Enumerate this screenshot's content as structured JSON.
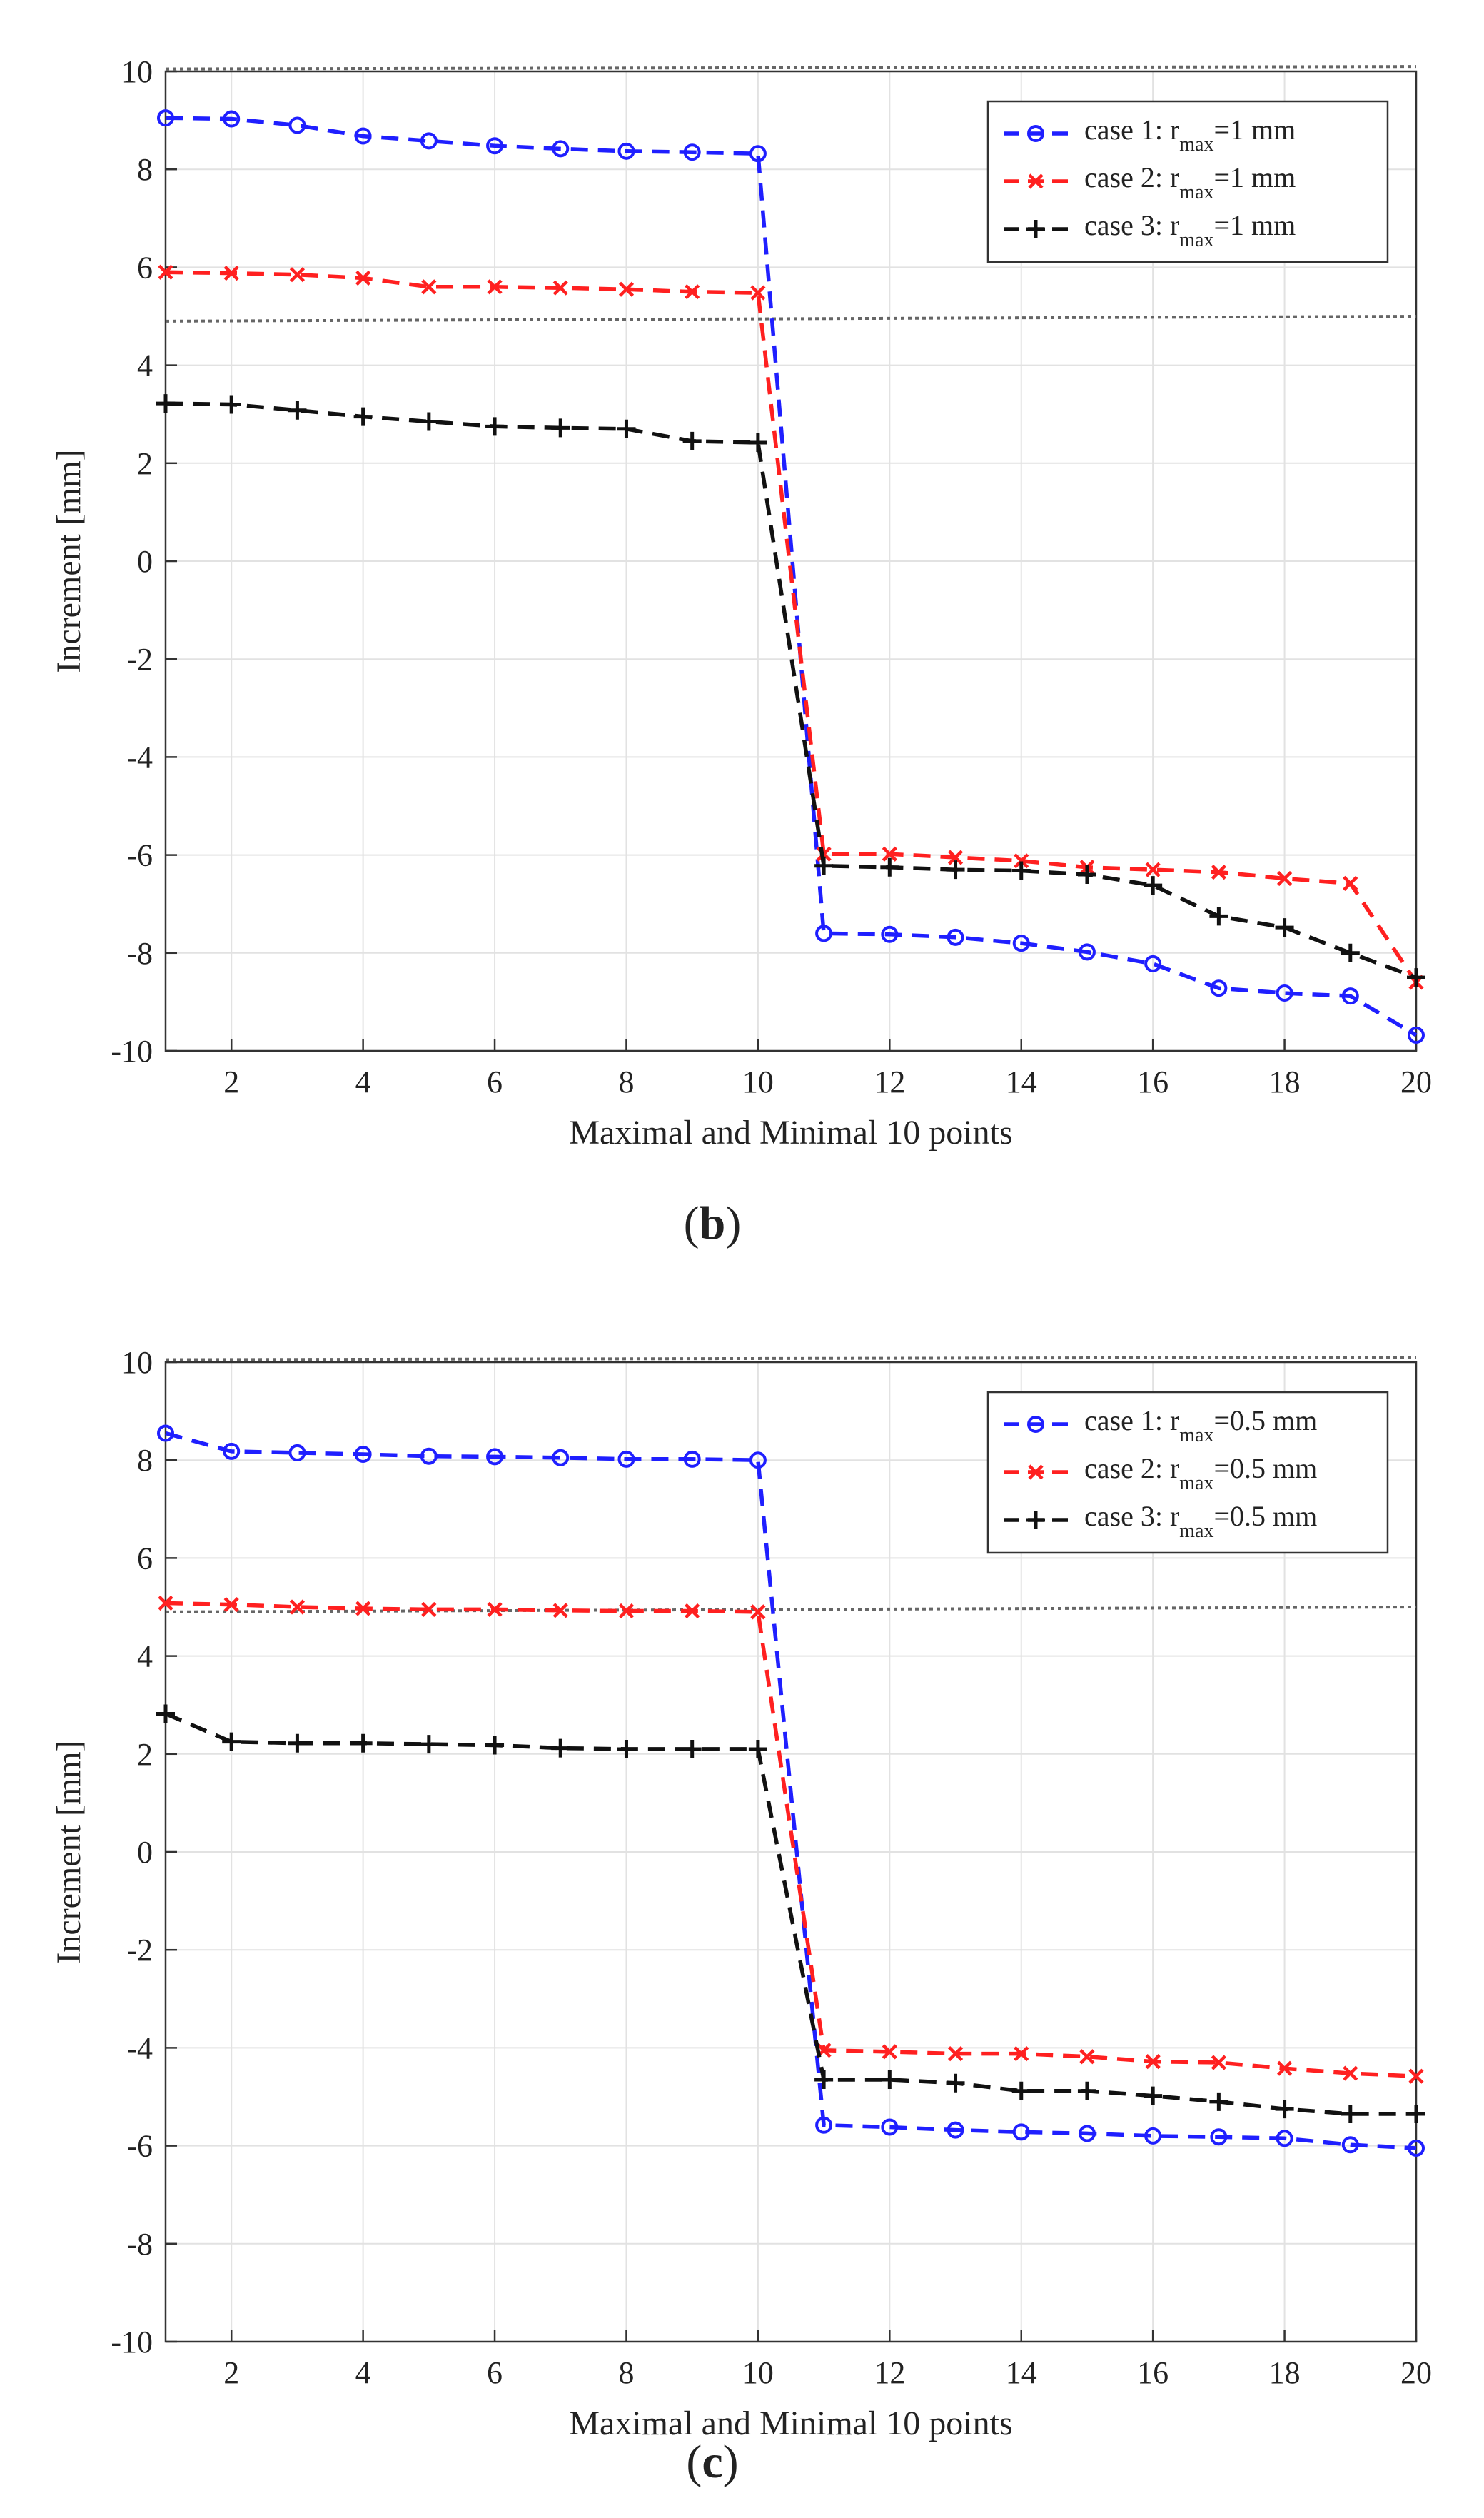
{
  "colors": {
    "case1": "#1f1fff",
    "case2": "#ff2020",
    "case3": "#111111",
    "threshold": "#666666",
    "grid": "#e2e2e2",
    "axis": "#333333"
  },
  "chart_data": [
    {
      "type": "line",
      "panel_label_open": "(",
      "panel_label_letter": "b",
      "panel_label_close": ")",
      "xlabel": "Maximal and Minimal 10 points",
      "ylabel": "Increment [mm]",
      "xlim": [
        1,
        20
      ],
      "ylim": [
        -10,
        10
      ],
      "xticks": [
        2,
        4,
        6,
        8,
        10,
        12,
        14,
        16,
        18,
        20
      ],
      "yticks": [
        10,
        8,
        6,
        4,
        2,
        0,
        -2,
        -4,
        -6,
        -8,
        -10
      ],
      "grid": true,
      "legend_position": "top-right",
      "thresholds": [
        {
          "name": "upper-threshold",
          "y": [
            10.05,
            10.1
          ]
        },
        {
          "name": "lower-threshold",
          "y": [
            4.9,
            5.0
          ]
        }
      ],
      "x": [
        1,
        2,
        3,
        4,
        5,
        6,
        7,
        8,
        9,
        10,
        11,
        12,
        13,
        14,
        15,
        16,
        17,
        18,
        19,
        20
      ],
      "series": [
        {
          "key": "case1",
          "marker": "circle",
          "legend_prefix": "case 1: r",
          "legend_sub": "max",
          "legend_suffix": "=1 mm",
          "values": [
            9.05,
            9.03,
            8.9,
            8.68,
            8.58,
            8.48,
            8.42,
            8.37,
            8.35,
            8.32,
            -7.6,
            -7.62,
            -7.68,
            -7.8,
            -7.98,
            -8.22,
            -8.72,
            -8.82,
            -8.88,
            -9.68
          ]
        },
        {
          "key": "case2",
          "marker": "x",
          "legend_prefix": "case 2: r",
          "legend_sub": "max",
          "legend_suffix": "=1 mm",
          "values": [
            5.9,
            5.88,
            5.85,
            5.78,
            5.6,
            5.6,
            5.58,
            5.55,
            5.5,
            5.48,
            -5.98,
            -5.98,
            -6.05,
            -6.12,
            -6.25,
            -6.3,
            -6.35,
            -6.48,
            -6.58,
            -8.6
          ]
        },
        {
          "key": "case3",
          "marker": "plus",
          "legend_prefix": "case 3: r",
          "legend_sub": "max",
          "legend_suffix": "=1 mm",
          "values": [
            3.22,
            3.2,
            3.08,
            2.95,
            2.85,
            2.75,
            2.72,
            2.7,
            2.45,
            2.42,
            -6.22,
            -6.25,
            -6.3,
            -6.32,
            -6.4,
            -6.62,
            -7.25,
            -7.48,
            -8.0,
            -8.5
          ]
        }
      ]
    },
    {
      "type": "line",
      "panel_label_open": "(",
      "panel_label_letter": "c",
      "panel_label_close": ")",
      "xlabel": "Maximal and Minimal 10 points",
      "ylabel": "Increment [mm]",
      "xlim": [
        1,
        20
      ],
      "ylim": [
        -10,
        10
      ],
      "xticks": [
        2,
        4,
        6,
        8,
        10,
        12,
        14,
        16,
        18,
        20
      ],
      "yticks": [
        10,
        8,
        6,
        4,
        2,
        0,
        -2,
        -4,
        -6,
        -8,
        -10
      ],
      "grid": true,
      "legend_position": "top-right",
      "thresholds": [
        {
          "name": "upper-threshold",
          "y": [
            10.05,
            10.1
          ]
        },
        {
          "name": "lower-threshold",
          "y": [
            4.9,
            5.0
          ]
        }
      ],
      "x": [
        1,
        2,
        3,
        4,
        5,
        6,
        7,
        8,
        9,
        10,
        11,
        12,
        13,
        14,
        15,
        16,
        17,
        18,
        19,
        20
      ],
      "series": [
        {
          "key": "case1",
          "marker": "circle",
          "legend_prefix": "case 1: r",
          "legend_sub": "max",
          "legend_suffix": "=0.5 mm",
          "values": [
            8.55,
            8.18,
            8.15,
            8.12,
            8.08,
            8.07,
            8.05,
            8.02,
            8.02,
            8.0,
            -5.58,
            -5.62,
            -5.68,
            -5.72,
            -5.75,
            -5.8,
            -5.82,
            -5.85,
            -5.98,
            -6.05
          ]
        },
        {
          "key": "case2",
          "marker": "x",
          "legend_prefix": "case 2: r",
          "legend_sub": "max",
          "legend_suffix": "=0.5 mm",
          "values": [
            5.08,
            5.05,
            5.0,
            4.97,
            4.95,
            4.95,
            4.93,
            4.92,
            4.92,
            4.9,
            -4.05,
            -4.08,
            -4.12,
            -4.12,
            -4.18,
            -4.28,
            -4.3,
            -4.42,
            -4.52,
            -4.58
          ]
        },
        {
          "key": "case3",
          "marker": "plus",
          "legend_prefix": "case 3: r",
          "legend_sub": "max",
          "legend_suffix": "=0.5 mm",
          "values": [
            2.82,
            2.25,
            2.22,
            2.22,
            2.2,
            2.18,
            2.12,
            2.1,
            2.1,
            2.1,
            -4.65,
            -4.65,
            -4.72,
            -4.88,
            -4.88,
            -4.98,
            -5.1,
            -5.25,
            -5.35,
            -5.35
          ]
        }
      ]
    }
  ]
}
